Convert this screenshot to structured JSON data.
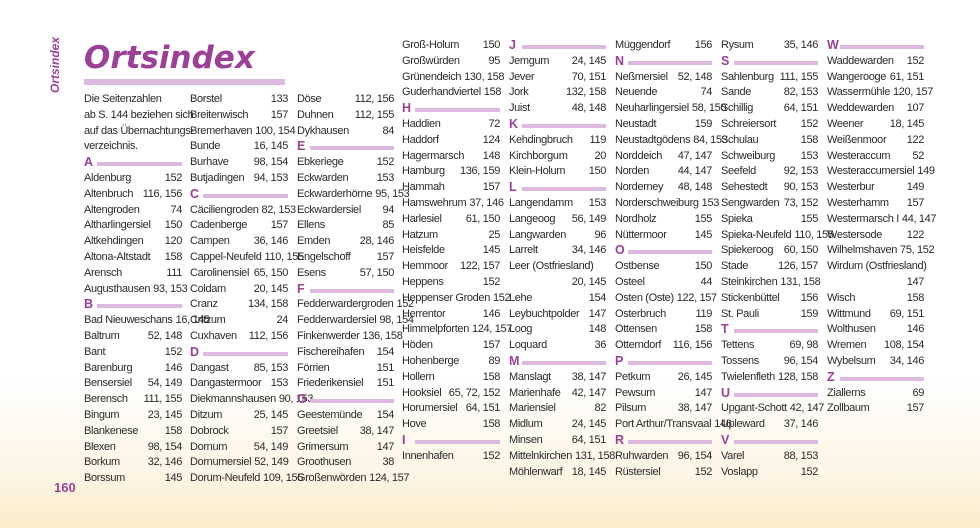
{
  "page": {
    "side_label": "Ortsindex",
    "title": "Ortsindex",
    "page_number": "160"
  },
  "intro": [
    "Die Seitenzahlen",
    "ab  S. 144 beziehen sich",
    "auf das Übernachtungs-",
    "verzeichnis."
  ],
  "columns": [
    [
      {
        "t": "letter",
        "text": "A"
      },
      {
        "name": "Aldenburg",
        "pages": "152"
      },
      {
        "name": "Altenbruch",
        "pages": "116, 156"
      },
      {
        "name": "Altengroden",
        "pages": "74"
      },
      {
        "name": "Altharlingersiel",
        "pages": "150"
      },
      {
        "name": "Altkehdingen",
        "pages": "120"
      },
      {
        "name": "Altona-Altstadt",
        "pages": "158"
      },
      {
        "name": "Arensch",
        "pages": "111"
      },
      {
        "name": "Augusthausen",
        "pages": "93, 153"
      },
      {
        "t": "letter",
        "text": "B"
      },
      {
        "name": "Bad Nieuweschans",
        "pages": "16, 145"
      },
      {
        "name": "Baltrum",
        "pages": "52, 148"
      },
      {
        "name": "Bant",
        "pages": "152"
      },
      {
        "name": "Barenburg",
        "pages": "146"
      },
      {
        "name": "Bensersiel",
        "pages": "54, 149"
      },
      {
        "name": "Berensch",
        "pages": "111, 155"
      },
      {
        "name": "Bingum",
        "pages": "23, 145"
      },
      {
        "name": "Blankenese",
        "pages": "158"
      },
      {
        "name": "Blexen",
        "pages": "98, 154"
      },
      {
        "name": "Borkum",
        "pages": "32, 146"
      },
      {
        "name": "Borssum",
        "pages": "145"
      }
    ],
    [
      {
        "name": "Borstel",
        "pages": "133"
      },
      {
        "name": "Breitenwisch",
        "pages": "157"
      },
      {
        "name": "Bremerhaven",
        "pages": "100, 154"
      },
      {
        "name": "Bunde",
        "pages": "16, 145"
      },
      {
        "name": "Burhave",
        "pages": "98, 154"
      },
      {
        "name": "Butjadingen",
        "pages": "94, 153"
      },
      {
        "t": "letter",
        "text": "C"
      },
      {
        "name": "Cäciliengroden",
        "pages": "82, 153"
      },
      {
        "name": "Cadenberge",
        "pages": "157"
      },
      {
        "name": "Campen",
        "pages": "36, 146"
      },
      {
        "name": "Cappel-Neufeld",
        "pages": "110, 155"
      },
      {
        "name": "Carolinensiel",
        "pages": "65, 150"
      },
      {
        "name": "Coldam",
        "pages": "20, 145"
      },
      {
        "name": "Cranz",
        "pages": "134, 158"
      },
      {
        "name": "Critzum",
        "pages": "24"
      },
      {
        "name": "Cuxhaven",
        "pages": "112, 156"
      },
      {
        "t": "letter",
        "text": "D"
      },
      {
        "name": "Dangast",
        "pages": "85, 153"
      },
      {
        "name": "Dangastermoor",
        "pages": "153"
      },
      {
        "name": "Diekmannshausen",
        "pages": "90, 153"
      },
      {
        "name": "Ditzum",
        "pages": "25, 145"
      },
      {
        "name": "Dobrock",
        "pages": "157"
      },
      {
        "name": "Dornum",
        "pages": "54, 149"
      },
      {
        "name": "Dornumersiel",
        "pages": "52, 149"
      },
      {
        "name": "Dorum-Neufeld",
        "pages": "109, 155"
      }
    ],
    [
      {
        "name": "Döse",
        "pages": "112, 156"
      },
      {
        "name": "Duhnen",
        "pages": "112, 155"
      },
      {
        "name": "Dykhausen",
        "pages": "84"
      },
      {
        "t": "letter",
        "text": "E"
      },
      {
        "name": "Ebkeriege",
        "pages": "152"
      },
      {
        "name": "Eckwarden",
        "pages": "153"
      },
      {
        "name": "Eckwarderhörne",
        "pages": "95, 153"
      },
      {
        "name": "Eckwardersiel",
        "pages": "94"
      },
      {
        "name": "Ellens",
        "pages": "85"
      },
      {
        "name": "Emden",
        "pages": "28, 146"
      },
      {
        "name": "Engelschoff",
        "pages": "157"
      },
      {
        "name": "Esens",
        "pages": "57, 150"
      },
      {
        "t": "letter",
        "text": "F"
      },
      {
        "name": "Fedderwardergroden",
        "pages": "152"
      },
      {
        "name": "Fedderwardersiel",
        "pages": "98, 154"
      },
      {
        "name": "Finkenwerder",
        "pages": "136, 158"
      },
      {
        "name": "Fischereihafen",
        "pages": "154"
      },
      {
        "name": "Förrien",
        "pages": "151"
      },
      {
        "name": "Friederikensiel",
        "pages": "151"
      },
      {
        "t": "letter",
        "text": "G"
      },
      {
        "name": "Geestemünde",
        "pages": "154"
      },
      {
        "name": "Greetsiel",
        "pages": "38, 147"
      },
      {
        "name": "Grimersum",
        "pages": "147"
      },
      {
        "name": "Groothusen",
        "pages": "38"
      },
      {
        "name": "Großenwörden",
        "pages": "124, 157"
      }
    ],
    [
      {
        "name": "Groß-Holum",
        "pages": "150"
      },
      {
        "name": "Großwürden",
        "pages": "95"
      },
      {
        "name": "Grünendeich",
        "pages": "130, 158"
      },
      {
        "name": "Guderhandviertel",
        "pages": "158"
      },
      {
        "t": "letter",
        "text": "H"
      },
      {
        "name": "Haddien",
        "pages": "72"
      },
      {
        "name": "Haddorf",
        "pages": "124"
      },
      {
        "name": "Hagermarsch",
        "pages": "148"
      },
      {
        "name": "Hamburg",
        "pages": "136, 159"
      },
      {
        "name": "Hammah",
        "pages": "157"
      },
      {
        "name": "Hamswehrum",
        "pages": "37, 146"
      },
      {
        "name": "Harlesiel",
        "pages": "61, 150"
      },
      {
        "name": "Hatzum",
        "pages": "25"
      },
      {
        "name": "Heisfelde",
        "pages": "145"
      },
      {
        "name": "Hemmoor",
        "pages": "122, 157"
      },
      {
        "name": "Heppens",
        "pages": "152"
      },
      {
        "name": "Heppenser Groden",
        "pages": "152"
      },
      {
        "name": "Herrentor",
        "pages": "146"
      },
      {
        "name": "Himmelpforten",
        "pages": "124, 157"
      },
      {
        "name": "Höden",
        "pages": "157"
      },
      {
        "name": "Hohenberge",
        "pages": "89"
      },
      {
        "name": "Hollern",
        "pages": "158"
      },
      {
        "name": "Hooksiel",
        "pages": "65, 72, 152"
      },
      {
        "name": "Horumersiel",
        "pages": "64, 151"
      },
      {
        "name": "Hove",
        "pages": "158"
      },
      {
        "t": "letter",
        "text": "I"
      },
      {
        "name": "Innenhafen",
        "pages": "152"
      }
    ],
    [
      {
        "t": "letter",
        "text": "J"
      },
      {
        "name": "Jemgum",
        "pages": "24, 145"
      },
      {
        "name": "Jever",
        "pages": "70, 151"
      },
      {
        "name": "Jork",
        "pages": "132, 158"
      },
      {
        "name": "Juist",
        "pages": "48, 148"
      },
      {
        "t": "letter",
        "text": "K"
      },
      {
        "name": "Kehdingbruch",
        "pages": "119"
      },
      {
        "name": "Kirchborgum",
        "pages": "20"
      },
      {
        "name": "Klein-Holum",
        "pages": "150"
      },
      {
        "t": "letter",
        "text": "L"
      },
      {
        "name": "Langendamm",
        "pages": "153"
      },
      {
        "name": "Langeoog",
        "pages": "56, 149"
      },
      {
        "name": "Langwarden",
        "pages": "96"
      },
      {
        "name": "Larrelt",
        "pages": "34, 146"
      },
      {
        "t": "full",
        "name": "Leer (Ostfriesland)"
      },
      {
        "t": "pg",
        "pages": "20, 145"
      },
      {
        "name": "Lehe",
        "pages": "154"
      },
      {
        "name": "Leybuchtpolder",
        "pages": "147"
      },
      {
        "name": "Loog",
        "pages": "148"
      },
      {
        "name": "Loquard",
        "pages": "36"
      },
      {
        "t": "letter",
        "text": "M"
      },
      {
        "name": "Manslagt",
        "pages": "38, 147"
      },
      {
        "name": "Marienhafe",
        "pages": "42, 147"
      },
      {
        "name": "Mariensiel",
        "pages": "82"
      },
      {
        "name": "Midlum",
        "pages": "24, 145"
      },
      {
        "name": "Minsen",
        "pages": "64, 151"
      },
      {
        "name": "Mittelnkirchen",
        "pages": "131, 158"
      },
      {
        "name": "Möhlenwarf",
        "pages": "18, 145"
      }
    ],
    [
      {
        "name": "Müggendorf",
        "pages": "156"
      },
      {
        "t": "letter",
        "text": "N"
      },
      {
        "name": "Neßmersiel",
        "pages": "52, 148"
      },
      {
        "name": "Neuende",
        "pages": "74"
      },
      {
        "name": "Neuharlingersiel",
        "pages": "58, 150"
      },
      {
        "name": "Neustadt",
        "pages": "159"
      },
      {
        "name": "Neustadtgödens",
        "pages": "84, 153"
      },
      {
        "name": "Norddeich",
        "pages": "47, 147"
      },
      {
        "name": "Norden",
        "pages": "44, 147"
      },
      {
        "name": "Norderney",
        "pages": "48, 148"
      },
      {
        "name": "Norderschweiburg",
        "pages": "153"
      },
      {
        "name": "Nordholz",
        "pages": "155"
      },
      {
        "name": "Nüttermoor",
        "pages": "145"
      },
      {
        "t": "letter",
        "text": "O"
      },
      {
        "name": "Ostbense",
        "pages": "150"
      },
      {
        "name": "Osteel",
        "pages": "44"
      },
      {
        "name": "Osten (Oste)",
        "pages": "122, 157"
      },
      {
        "name": "Osterbruch",
        "pages": "119"
      },
      {
        "name": "Ottensen",
        "pages": "158"
      },
      {
        "name": "Otterndorf",
        "pages": "116, 156"
      },
      {
        "t": "letter",
        "text": "P"
      },
      {
        "name": "Petkum",
        "pages": "26, 145"
      },
      {
        "name": "Pewsum",
        "pages": "147"
      },
      {
        "name": "Pilsum",
        "pages": "38, 147"
      },
      {
        "name": "Port Arthur/Transvaal",
        "pages": "146"
      },
      {
        "t": "letter",
        "text": "R"
      },
      {
        "name": "Ruhwarden",
        "pages": "96, 154"
      },
      {
        "name": "Rüstersiel",
        "pages": "152"
      }
    ],
    [
      {
        "name": "Rysum",
        "pages": "35, 146"
      },
      {
        "t": "letter",
        "text": "S"
      },
      {
        "name": "Sahlenburg",
        "pages": "111, 155"
      },
      {
        "name": "Sande",
        "pages": "82, 153"
      },
      {
        "name": "Schillig",
        "pages": "64, 151"
      },
      {
        "name": "Schreiersort",
        "pages": "152"
      },
      {
        "name": "Schulau",
        "pages": "158"
      },
      {
        "name": "Schweiburg",
        "pages": "153"
      },
      {
        "name": "Seefeld",
        "pages": "92, 153"
      },
      {
        "name": "Sehestedt",
        "pages": "90, 153"
      },
      {
        "name": "Sengwarden",
        "pages": "73, 152"
      },
      {
        "name": "Spieka",
        "pages": "155"
      },
      {
        "name": "Spieka-Neufeld",
        "pages": "110, 155"
      },
      {
        "name": "Spiekeroog",
        "pages": "60, 150"
      },
      {
        "name": "Stade",
        "pages": "126, 157"
      },
      {
        "name": "Steinkirchen",
        "pages": "131, 158"
      },
      {
        "name": "Stickenbüttel",
        "pages": "156"
      },
      {
        "name": "St. Pauli",
        "pages": "159"
      },
      {
        "t": "letter",
        "text": "T"
      },
      {
        "name": "Tettens",
        "pages": "69, 98"
      },
      {
        "name": "Tossens",
        "pages": "96, 154"
      },
      {
        "name": "Twielenfleth",
        "pages": "128, 158"
      },
      {
        "t": "letter",
        "text": "U"
      },
      {
        "name": "Upgant-Schott",
        "pages": "42, 147"
      },
      {
        "name": "Upleward",
        "pages": "37, 146"
      },
      {
        "t": "letter",
        "text": "V"
      },
      {
        "name": "Varel",
        "pages": "88, 153"
      },
      {
        "name": "Voslapp",
        "pages": "152"
      }
    ],
    [
      {
        "t": "letter",
        "text": "W"
      },
      {
        "name": "Waddewarden",
        "pages": "152"
      },
      {
        "name": "Wangerooge",
        "pages": "61, 151"
      },
      {
        "name": "Wassermühle",
        "pages": "120, 157"
      },
      {
        "name": "Weddewarden",
        "pages": "107"
      },
      {
        "name": "Weener",
        "pages": "18, 145"
      },
      {
        "name": "Weißenmoor",
        "pages": "122"
      },
      {
        "name": "Westeraccum",
        "pages": "52"
      },
      {
        "name": "Westeraccumersiel",
        "pages": "149"
      },
      {
        "name": "Westerbur",
        "pages": "149"
      },
      {
        "name": "Westerhamm",
        "pages": "157"
      },
      {
        "name": "Westermarsch I",
        "pages": "44, 147"
      },
      {
        "name": "Westersode",
        "pages": "122"
      },
      {
        "name": "Wilhelmshaven",
        "pages": "75, 152"
      },
      {
        "t": "full",
        "name": "Wirdum (Ostfriesland)"
      },
      {
        "t": "pg",
        "pages": "147"
      },
      {
        "name": "Wisch",
        "pages": "158"
      },
      {
        "name": "Wittmund",
        "pages": "69, 151"
      },
      {
        "name": "Wolthusen",
        "pages": "146"
      },
      {
        "name": "Wremen",
        "pages": "108, 154"
      },
      {
        "name": "Wybelsum",
        "pages": "34, 146"
      },
      {
        "t": "letter",
        "text": "Z"
      },
      {
        "name": "Ziallerns",
        "pages": "69"
      },
      {
        "name": "Zollbaum",
        "pages": "157"
      }
    ]
  ],
  "colors": {
    "accent": "#9b3f97",
    "bar": "#ddb8df",
    "text": "#2a2a2a"
  }
}
